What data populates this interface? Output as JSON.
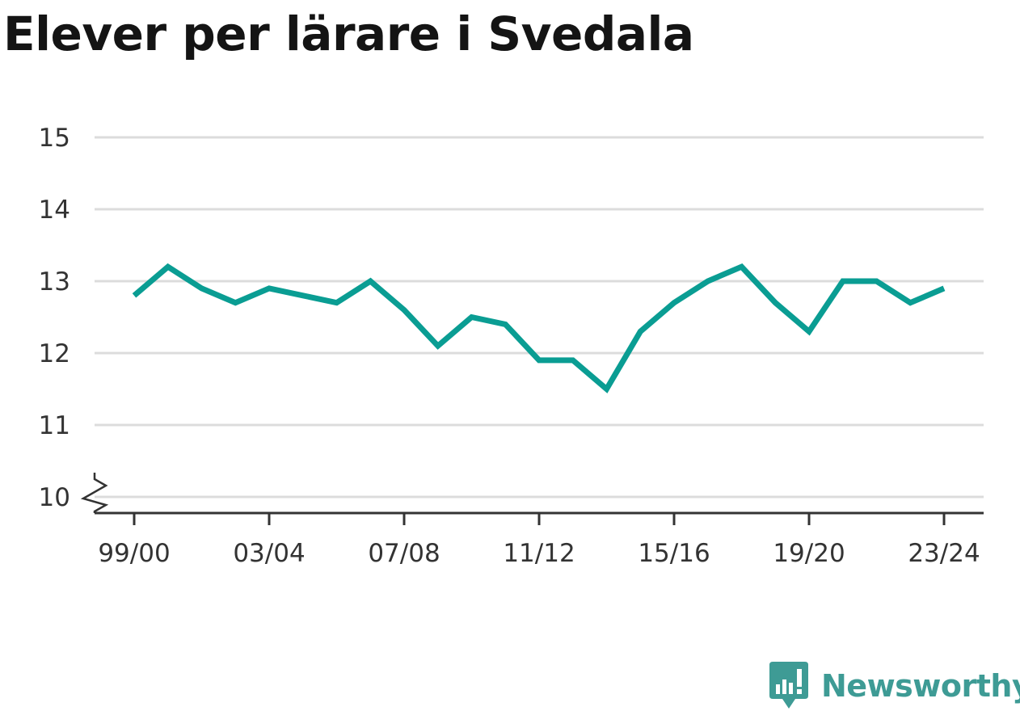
{
  "title": "Elever per lärare i Svedala",
  "brand": {
    "name": "Newsworthy",
    "icon": "newsworthy-logo-icon",
    "color": "#3e9b95"
  },
  "chart_data": {
    "type": "line",
    "title": "Elever per lärare i Svedala",
    "xlabel": "",
    "ylabel": "",
    "x": [
      "99/00",
      "00/01",
      "01/02",
      "02/03",
      "03/04",
      "04/05",
      "05/06",
      "06/07",
      "07/08",
      "08/09",
      "09/10",
      "10/11",
      "11/12",
      "12/13",
      "13/14",
      "14/15",
      "15/16",
      "16/17",
      "17/18",
      "18/19",
      "19/20",
      "20/21",
      "21/22",
      "22/23",
      "23/24"
    ],
    "x_tick_labels": [
      "99/00",
      "03/04",
      "07/08",
      "11/12",
      "15/16",
      "19/20",
      "23/24"
    ],
    "y_ticks": [
      10,
      11,
      12,
      13,
      14,
      15
    ],
    "ylim": [
      10,
      15
    ],
    "axis_break": true,
    "grid": true,
    "series": [
      {
        "color": "#0a9d93",
        "values": [
          12.8,
          13.2,
          12.9,
          12.7,
          12.9,
          12.8,
          12.7,
          13.0,
          12.6,
          12.1,
          12.5,
          12.4,
          11.9,
          11.9,
          11.5,
          12.3,
          12.7,
          13.0,
          13.2,
          12.7,
          12.3,
          13.0,
          13.0,
          12.7,
          12.9
        ]
      }
    ]
  }
}
